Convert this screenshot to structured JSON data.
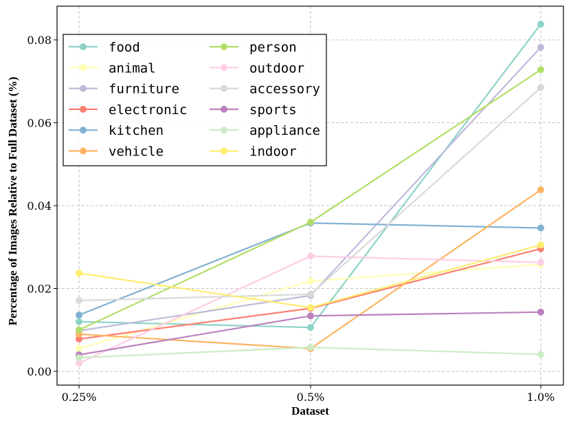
{
  "chart_data": {
    "type": "line",
    "title": "",
    "xlabel": "Dataset",
    "ylabel": "Percentage of Images Relative to Full Dataset (%)",
    "categories": [
      "0.25%",
      "0.5%",
      "1.0%"
    ],
    "ylim": [
      -0.002,
      0.088
    ],
    "yticks": [
      0.0,
      0.02,
      0.04,
      0.06,
      0.08
    ],
    "ytick_labels": [
      "0.00",
      "0.02",
      "0.04",
      "0.06",
      "0.08"
    ],
    "grid": true,
    "legend_position": "top-left",
    "series": [
      {
        "name": "food",
        "color": "#8dd3c7",
        "values": [
          0.012,
          0.0106,
          0.0838
        ]
      },
      {
        "name": "animal",
        "color": "#ffffb3",
        "values": [
          0.0055,
          0.0218,
          0.0258
        ]
      },
      {
        "name": "furniture",
        "color": "#bebada",
        "values": [
          0.0098,
          0.0183,
          0.0782
        ]
      },
      {
        "name": "electronic",
        "color": "#fb8072",
        "values": [
          0.0078,
          0.0152,
          0.0296
        ]
      },
      {
        "name": "kitchen",
        "color": "#80b1d3",
        "values": [
          0.0136,
          0.0358,
          0.0346
        ]
      },
      {
        "name": "vehicle",
        "color": "#fdb462",
        "values": [
          0.009,
          0.0055,
          0.0438
        ]
      },
      {
        "name": "person",
        "color": "#b3de69",
        "values": [
          0.01,
          0.036,
          0.0728
        ]
      },
      {
        "name": "outdoor",
        "color": "#fccde5",
        "values": [
          0.002,
          0.0278,
          0.0263
        ]
      },
      {
        "name": "accessory",
        "color": "#d9d9d9",
        "values": [
          0.0171,
          0.0186,
          0.0685
        ]
      },
      {
        "name": "sports",
        "color": "#bc80bd",
        "values": [
          0.004,
          0.0134,
          0.0143
        ]
      },
      {
        "name": "appliance",
        "color": "#ccebc5",
        "values": [
          0.0033,
          0.0058,
          0.0041
        ]
      },
      {
        "name": "indoor",
        "color": "#ffed6f",
        "values": [
          0.0237,
          0.0154,
          0.0305
        ]
      }
    ]
  }
}
